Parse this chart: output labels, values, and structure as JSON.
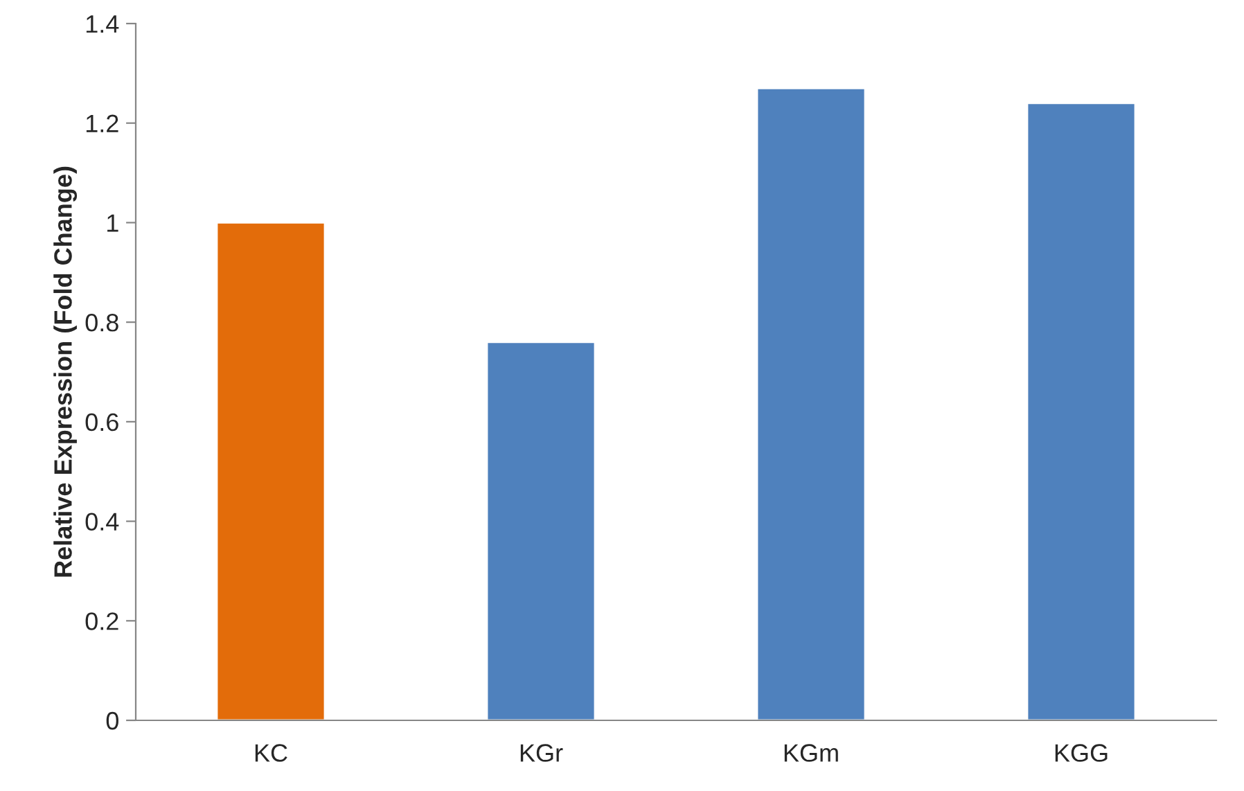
{
  "chart_data": {
    "type": "bar",
    "ylabel": "Relative Expression (Fold Change)",
    "categories": [
      "KC",
      "KGr",
      "KGm",
      "KGG"
    ],
    "values": [
      1.0,
      0.76,
      1.27,
      1.24
    ],
    "colors": [
      "#e36c0a",
      "#4f81bd",
      "#4f81bd",
      "#4f81bd"
    ],
    "ylim": [
      0,
      1.4
    ],
    "yticks": [
      0,
      0.2,
      0.4,
      0.6,
      0.8,
      1,
      1.2,
      1.4
    ],
    "grid": false
  }
}
